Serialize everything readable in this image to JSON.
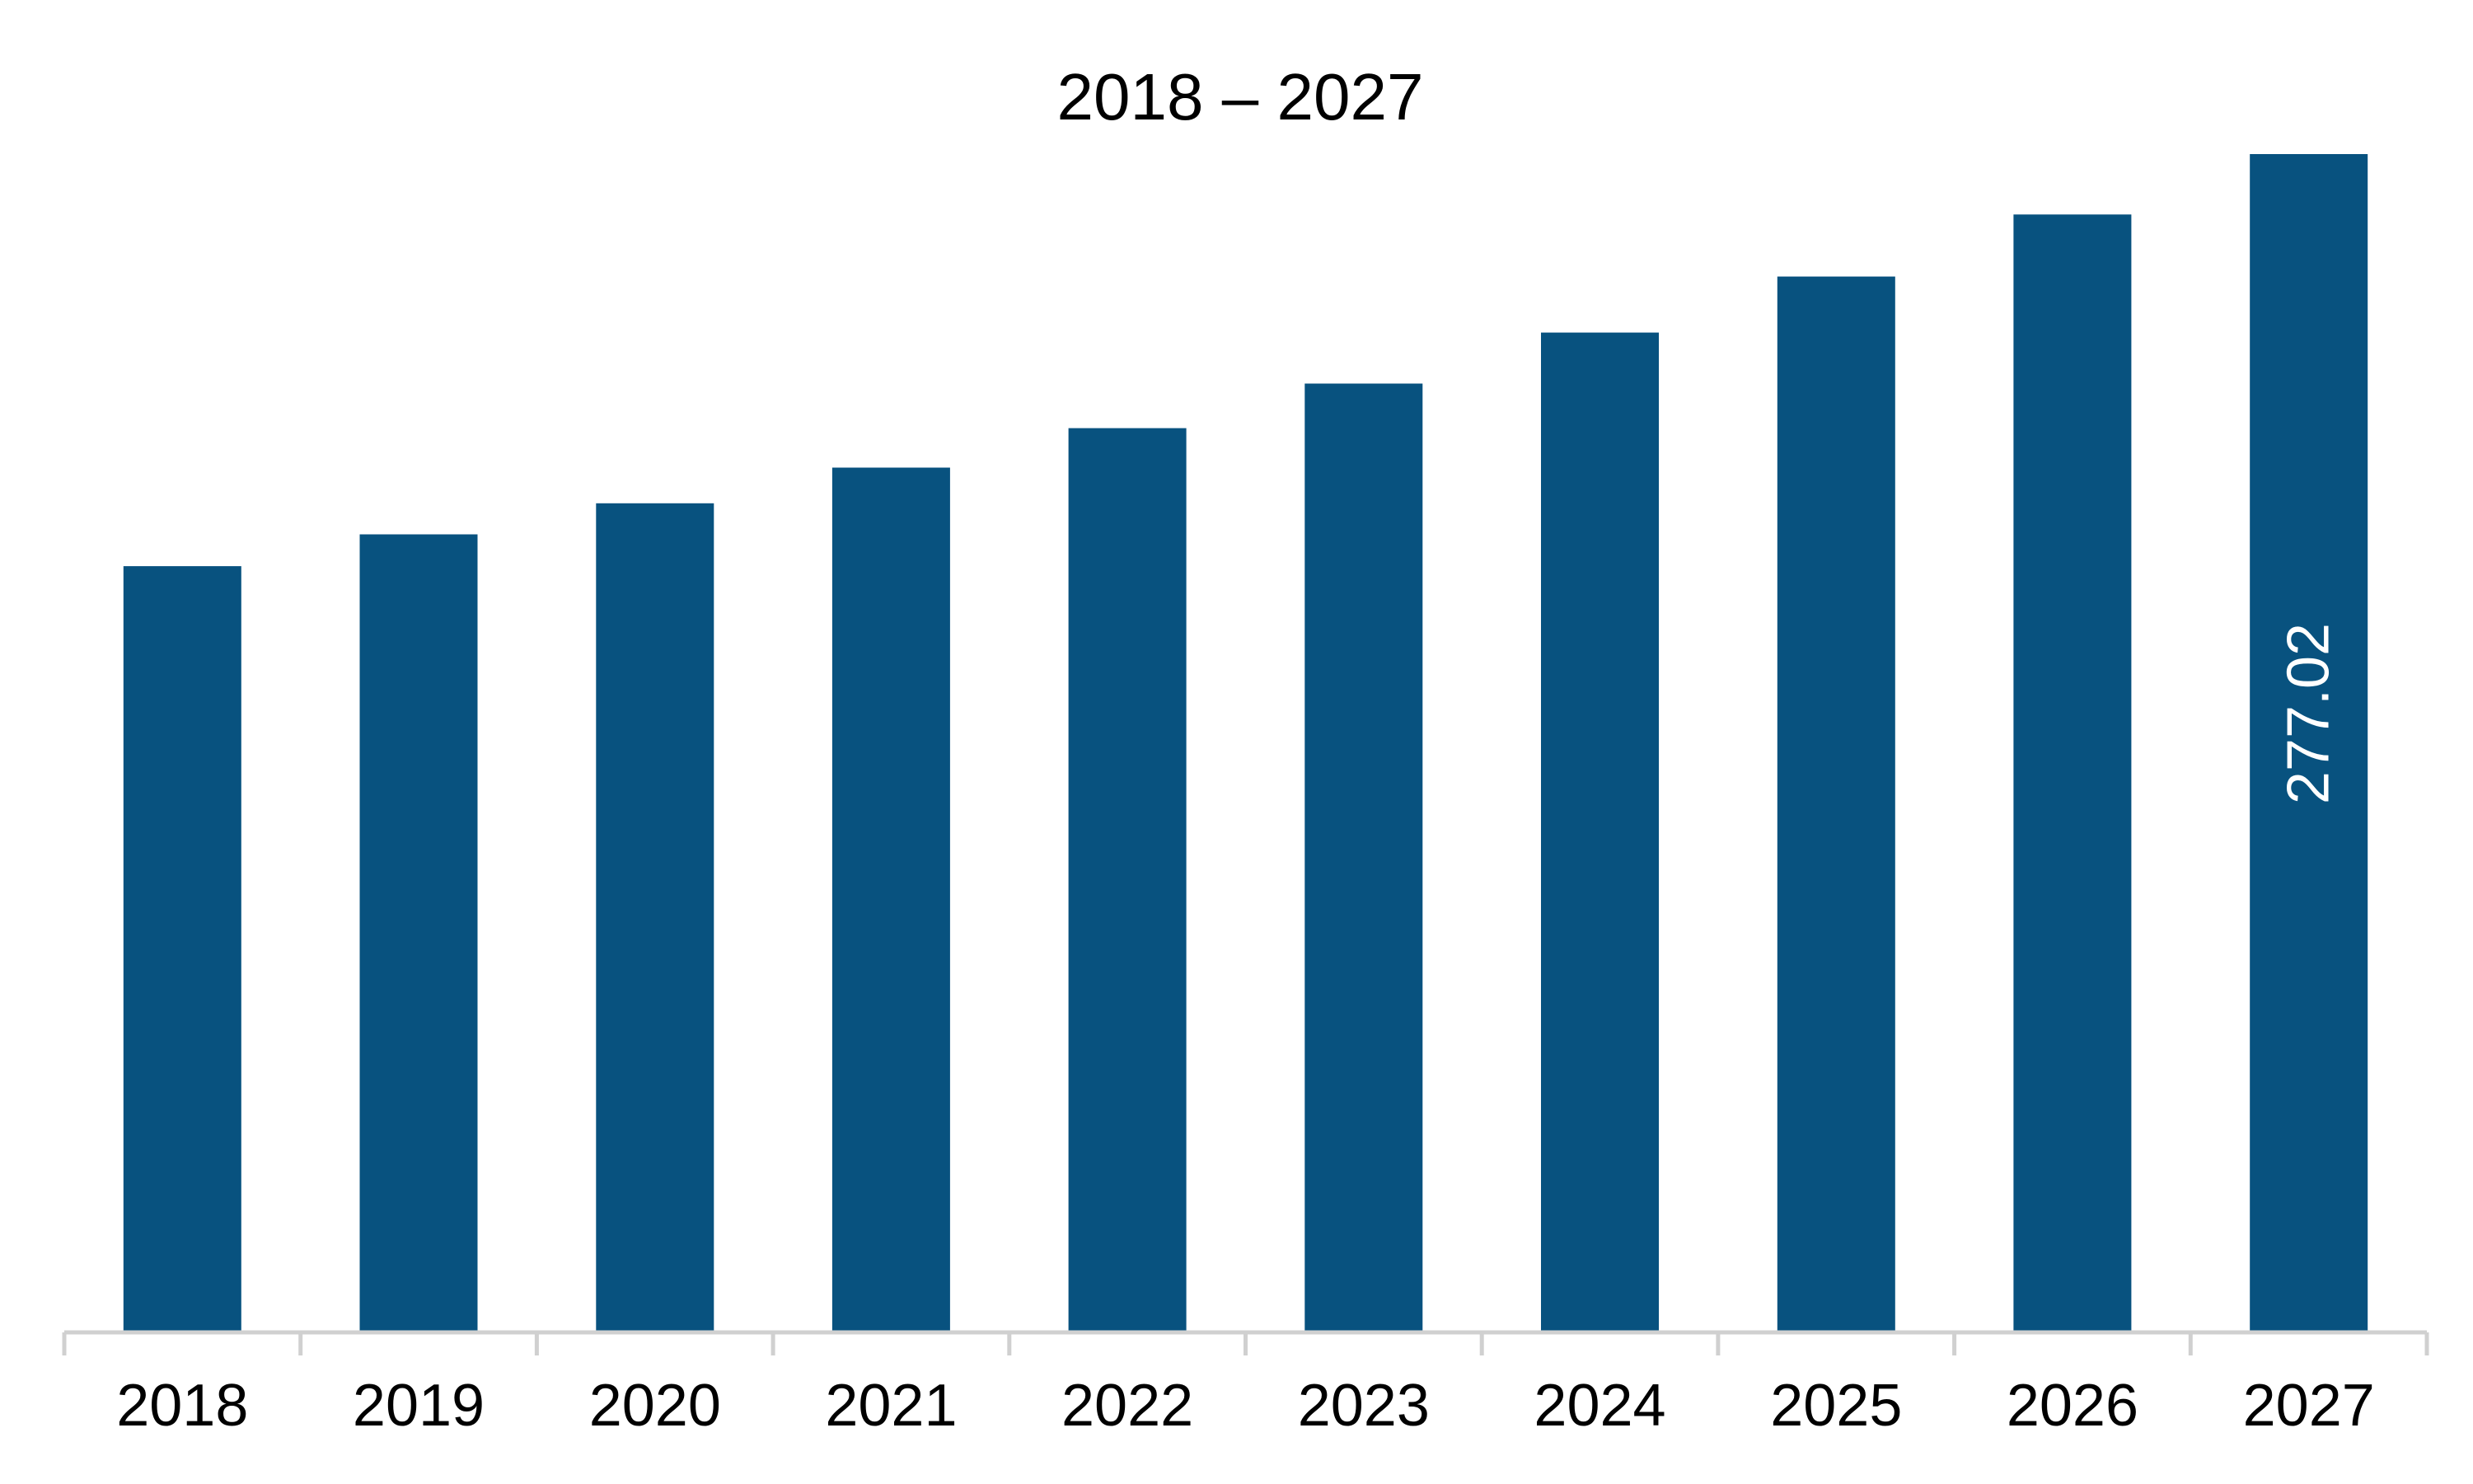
{
  "chart_data": {
    "type": "bar",
    "title": "2018 – 2027",
    "xlabel": "",
    "ylabel": "",
    "categories": [
      "2018",
      "2019",
      "2020",
      "2021",
      "2022",
      "2023",
      "2024",
      "2025",
      "2026",
      "2027"
    ],
    "values": [
      180.0,
      187.5,
      194.8,
      203.2,
      212.5,
      223.0,
      235.0,
      248.2,
      262.8,
      277.02
    ],
    "data_labels": [
      null,
      null,
      null,
      null,
      null,
      null,
      null,
      null,
      null,
      "277.02"
    ],
    "ylim": [
      0,
      277.02
    ],
    "grid": false,
    "legend": "none"
  },
  "colors": {
    "bar": "#08527F",
    "axis": "#D0D0D0",
    "text": "#000000",
    "data_label": "#FFFFFF"
  }
}
